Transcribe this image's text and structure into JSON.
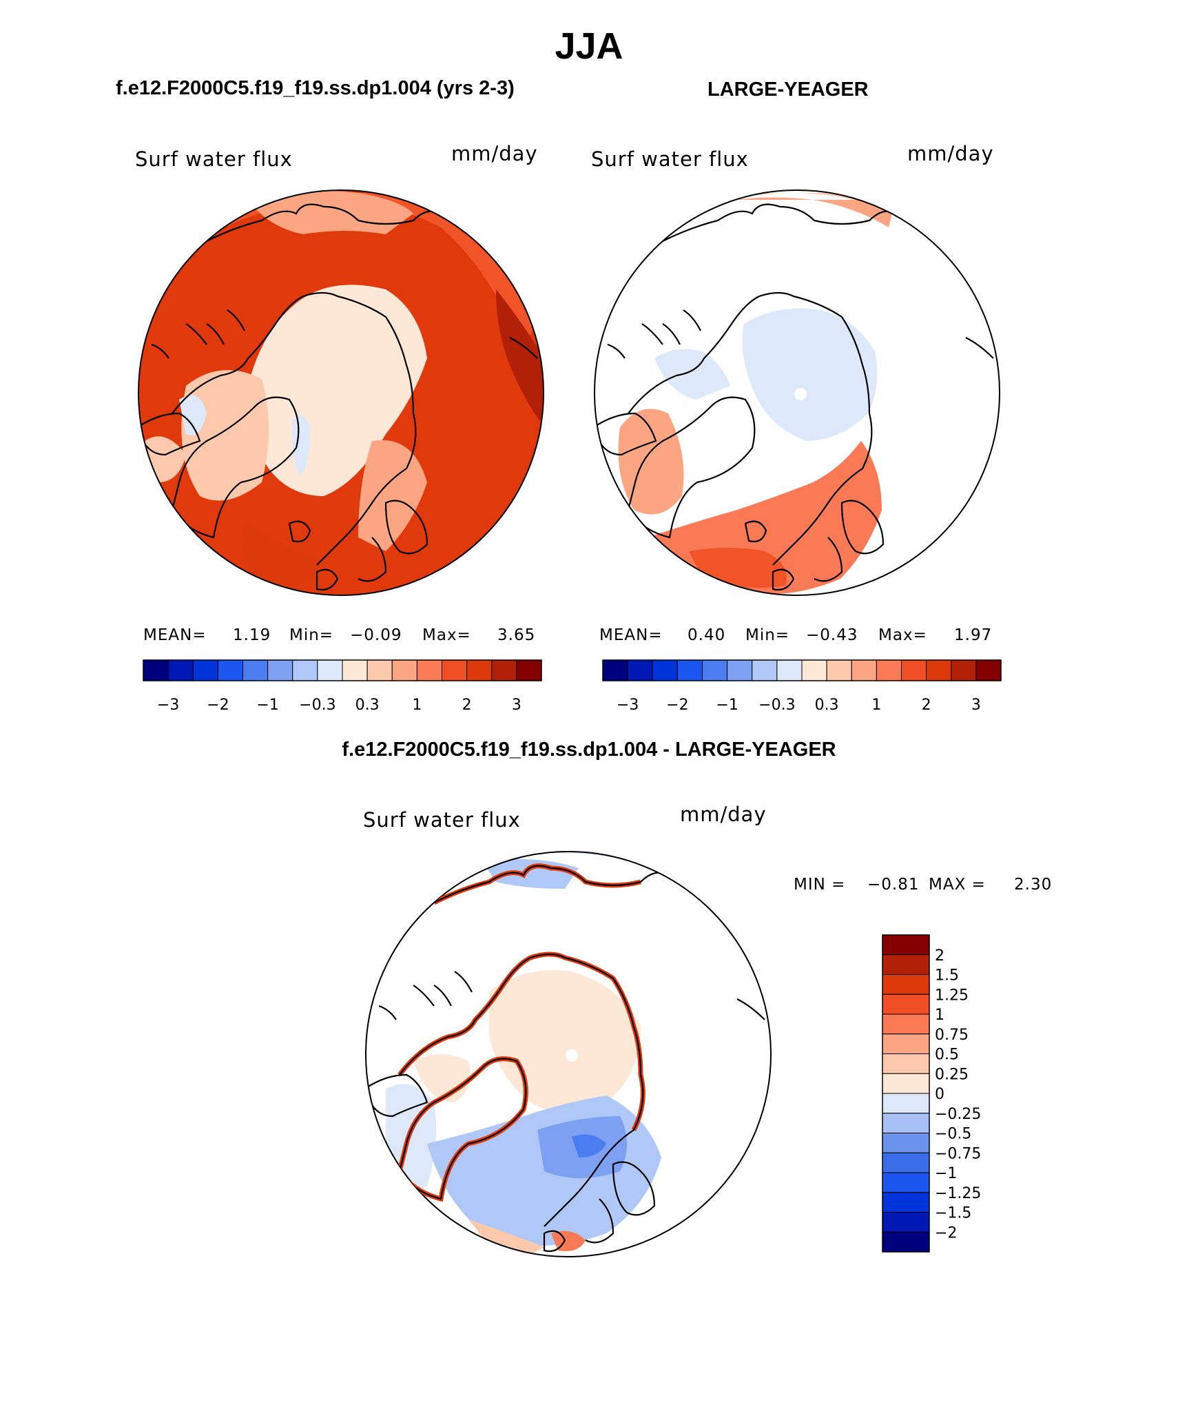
{
  "title": "JJA",
  "panels": [
    {
      "id": "left",
      "case": "f.e12.F2000C5.f19_f19.ss.dp1.004 (yrs 2-3)",
      "variable": "Surf water flux",
      "units": "mm/day",
      "stats": {
        "mean_label": "MEAN=",
        "mean": "1.19",
        "min_label": "Min=",
        "min": "−0.09",
        "max_label": "Max=",
        "max": "3.65"
      }
    },
    {
      "id": "right",
      "case": "LARGE-YEAGER",
      "variable": "Surf water flux",
      "units": "mm/day",
      "stats": {
        "mean_label": "MEAN=",
        "mean": "0.40",
        "min_label": "Min=",
        "min": "−0.43",
        "max_label": "Max=",
        "max": "1.97"
      }
    },
    {
      "id": "diff",
      "case": "f.e12.F2000C5.f19_f19.ss.dp1.004 - LARGE-YEAGER",
      "variable": "Surf water flux",
      "units": "mm/day",
      "stats": {
        "min_label": "MIN =",
        "min": "−0.81",
        "max_label": "MAX =",
        "max": "2.30"
      }
    }
  ],
  "colorbar_top": {
    "colors": [
      "#00007f",
      "#0018b4",
      "#0033d9",
      "#1a56ef",
      "#4a7df0",
      "#7da0f2",
      "#b0c8f7",
      "#dde9fb",
      "#fde8d7",
      "#fcc9ad",
      "#fba583",
      "#f97a55",
      "#f04f25",
      "#dd3a0c",
      "#b22107",
      "#840000"
    ],
    "tick_labels": [
      "−3",
      "−2",
      "−1",
      "−0.3",
      "0.3",
      "1",
      "2",
      "3"
    ]
  },
  "colorbar_diff": {
    "colors": [
      "#00007f",
      "#0018b4",
      "#0033d9",
      "#1a56ef",
      "#3a6ee8",
      "#6b93ee",
      "#a7c0f5",
      "#dde9fb",
      "#fde8d7",
      "#fcc9ad",
      "#fba583",
      "#f97a55",
      "#f04f25",
      "#dd3a0c",
      "#b22107",
      "#840000"
    ],
    "tick_labels": [
      "−2",
      "−1.5",
      "−1.25",
      "−1",
      "−0.75",
      "−0.5",
      "−0.25",
      "0",
      "0.25",
      "0.5",
      "0.75",
      "1",
      "1.25",
      "1.5",
      "2"
    ]
  }
}
